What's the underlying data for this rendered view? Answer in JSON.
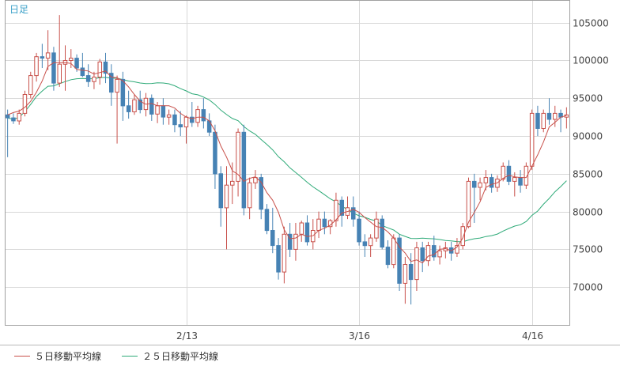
{
  "corner_label": "日足",
  "colors": {
    "ma5": "#c8504a",
    "ma25": "#2eaa78",
    "candle_up": "#c8504a",
    "candle_down": "#4682b4",
    "grid": "#d8d8d8",
    "frame": "#a0a0a0"
  },
  "legend": [
    {
      "label": "５日移動平均線",
      "color": "#c8504a"
    },
    {
      "label": "２５日移動平均線",
      "color": "#2eaa78"
    }
  ],
  "chart_data": {
    "type": "candlestick",
    "period": "日足",
    "ylim": [
      65000,
      108000
    ],
    "y_ticks": [
      70000,
      75000,
      80000,
      85000,
      90000,
      95000,
      100000,
      105000
    ],
    "y_tick_labels": [
      "70000",
      "75000",
      "80000",
      "85000",
      "90000",
      "95000",
      "100000",
      "105000"
    ],
    "x_tick_labels": [
      {
        "label": "2/13",
        "index": 31
      },
      {
        "label": "3/16",
        "index": 61
      },
      {
        "label": "4/16",
        "index": 91
      }
    ],
    "candles": [
      [
        92800,
        93500,
        87200,
        92400
      ],
      [
        92400,
        93000,
        91600,
        92000
      ],
      [
        92000,
        93500,
        91500,
        93000
      ],
      [
        93000,
        96000,
        92600,
        95500
      ],
      [
        95500,
        98500,
        95000,
        98000
      ],
      [
        98000,
        101000,
        97200,
        100500
      ],
      [
        100500,
        102200,
        99000,
        100300
      ],
      [
        100300,
        104000,
        98700,
        101000
      ],
      [
        101000,
        101800,
        96000,
        97000
      ],
      [
        97000,
        106000,
        96500,
        99500
      ],
      [
        99500,
        102000,
        96000,
        100000
      ],
      [
        100000,
        101500,
        99000,
        100300
      ],
      [
        100300,
        100800,
        98500,
        99000
      ],
      [
        99000,
        101000,
        97800,
        98000
      ],
      [
        98000,
        99500,
        96500,
        97200
      ],
      [
        97200,
        98500,
        96200,
        97800
      ],
      [
        97800,
        100200,
        96800,
        99800
      ],
      [
        99800,
        101000,
        97000,
        98300
      ],
      [
        98300,
        99500,
        94000,
        95800
      ],
      [
        95800,
        98000,
        89000,
        97500
      ],
      [
        97500,
        98500,
        92000,
        94000
      ],
      [
        94000,
        96000,
        92300,
        93200
      ],
      [
        93200,
        95500,
        92800,
        94800
      ],
      [
        94800,
        96000,
        93000,
        93500
      ],
      [
        93500,
        95700,
        92600,
        95000
      ],
      [
        95000,
        95500,
        92000,
        92900
      ],
      [
        92900,
        94500,
        91700,
        94000
      ],
      [
        94000,
        95000,
        91500,
        92500
      ],
      [
        92500,
        93500,
        91500,
        92800
      ],
      [
        92800,
        93500,
        90500,
        91500
      ],
      [
        91500,
        93300,
        90000,
        91200
      ],
      [
        91200,
        92700,
        89000,
        92500
      ],
      [
        92500,
        94500,
        91200,
        91800
      ],
      [
        91800,
        94000,
        91200,
        93500
      ],
      [
        93500,
        95000,
        91000,
        92000
      ],
      [
        92000,
        93000,
        90000,
        90500
      ],
      [
        90500,
        91500,
        83000,
        85000
      ],
      [
        85000,
        86000,
        78000,
        80500
      ],
      [
        80500,
        86000,
        75000,
        83500
      ],
      [
        83500,
        86500,
        81000,
        84000
      ],
      [
        84000,
        91000,
        82000,
        90500
      ],
      [
        90500,
        91500,
        79500,
        80500
      ],
      [
        80500,
        84500,
        79000,
        83800
      ],
      [
        83800,
        85500,
        83000,
        84500
      ],
      [
        84500,
        85000,
        79000,
        80300
      ],
      [
        80300,
        81000,
        77000,
        77500
      ],
      [
        77500,
        80500,
        74500,
        75500
      ],
      [
        75500,
        76500,
        71000,
        72000
      ],
      [
        72000,
        78000,
        70500,
        77000
      ],
      [
        77000,
        78500,
        74000,
        75000
      ],
      [
        75000,
        78500,
        73500,
        77000
      ],
      [
        77000,
        78800,
        76000,
        78500
      ],
      [
        78500,
        79500,
        75500,
        76000
      ],
      [
        76000,
        79000,
        75000,
        77500
      ],
      [
        77500,
        80000,
        76500,
        79000
      ],
      [
        79000,
        80000,
        77000,
        78000
      ],
      [
        78000,
        79000,
        77000,
        78800
      ],
      [
        78800,
        82500,
        78000,
        81500
      ],
      [
        81500,
        82000,
        78000,
        79500
      ],
      [
        79500,
        82000,
        79000,
        80500
      ],
      [
        80500,
        82000,
        78000,
        79000
      ],
      [
        79000,
        80000,
        75500,
        76000
      ],
      [
        76000,
        77000,
        74000,
        75500
      ],
      [
        75500,
        77000,
        74000,
        76500
      ],
      [
        76500,
        80000,
        76000,
        79000
      ],
      [
        79000,
        79500,
        75000,
        75300
      ],
      [
        75300,
        76200,
        72500,
        73000
      ],
      [
        73000,
        77000,
        72500,
        76500
      ],
      [
        76500,
        77000,
        69500,
        70500
      ],
      [
        70500,
        74000,
        67800,
        73000
      ],
      [
        73000,
        74500,
        67700,
        71000
      ],
      [
        71000,
        76000,
        69500,
        75200
      ],
      [
        75200,
        76000,
        72000,
        73500
      ],
      [
        73500,
        76000,
        72800,
        75500
      ],
      [
        75500,
        76800,
        73500,
        74000
      ],
      [
        74000,
        75500,
        73000,
        74800
      ],
      [
        74800,
        76000,
        73800,
        75200
      ],
      [
        75200,
        76000,
        73500,
        74500
      ],
      [
        74500,
        76500,
        74000,
        75500
      ],
      [
        75500,
        78500,
        75000,
        78000
      ],
      [
        78000,
        84500,
        77800,
        84000
      ],
      [
        84000,
        85000,
        78500,
        83200
      ],
      [
        83200,
        84500,
        81500,
        83800
      ],
      [
        83800,
        85500,
        82800,
        84500
      ],
      [
        84500,
        85000,
        82500,
        83200
      ],
      [
        83200,
        84800,
        82600,
        84300
      ],
      [
        84300,
        86500,
        84000,
        86000
      ],
      [
        86000,
        86800,
        83500,
        84000
      ],
      [
        84000,
        85200,
        82000,
        84500
      ],
      [
        84500,
        85500,
        82500,
        83500
      ],
      [
        83500,
        86500,
        83000,
        86000
      ],
      [
        86000,
        93500,
        85500,
        93000
      ],
      [
        93000,
        94000,
        90000,
        91000
      ],
      [
        91000,
        93500,
        90500,
        93000
      ],
      [
        93000,
        95000,
        91500,
        92200
      ],
      [
        92200,
        94000,
        91200,
        93000
      ],
      [
        93000,
        93500,
        90500,
        92500
      ],
      [
        92500,
        93800,
        91000,
        92800
      ]
    ],
    "ma5": [
      92800,
      93100,
      93300,
      93800,
      94600,
      95800,
      97300,
      99200,
      99700,
      99700,
      99700,
      99600,
      98800,
      98700,
      98600,
      98200,
      98400,
      98600,
      97800,
      97700,
      97300,
      96500,
      95500,
      94600,
      94200,
      94300,
      94000,
      94000,
      94000,
      93700,
      93000,
      92500,
      92300,
      92500,
      92500,
      92000,
      90700,
      88700,
      87200,
      85400,
      84900,
      84000,
      84400,
      84600,
      83900,
      82500,
      81500,
      79900,
      77600,
      76400,
      76500,
      77000,
      76700,
      76800,
      77500,
      77800,
      78200,
      78900,
      79800,
      80000,
      80300,
      79900,
      79200,
      78600,
      78000,
      77900,
      77300,
      76500,
      75300,
      74500,
      73400,
      73600,
      73200,
      74100,
      74300,
      75000,
      75100,
      74800,
      75300,
      76500,
      78600,
      79900,
      81300,
      83200,
      83600,
      83800,
      84400,
      84800,
      84600,
      84500,
      84500,
      86000,
      87500,
      89200,
      91200,
      91800,
      92500,
      92700
    ]
  }
}
